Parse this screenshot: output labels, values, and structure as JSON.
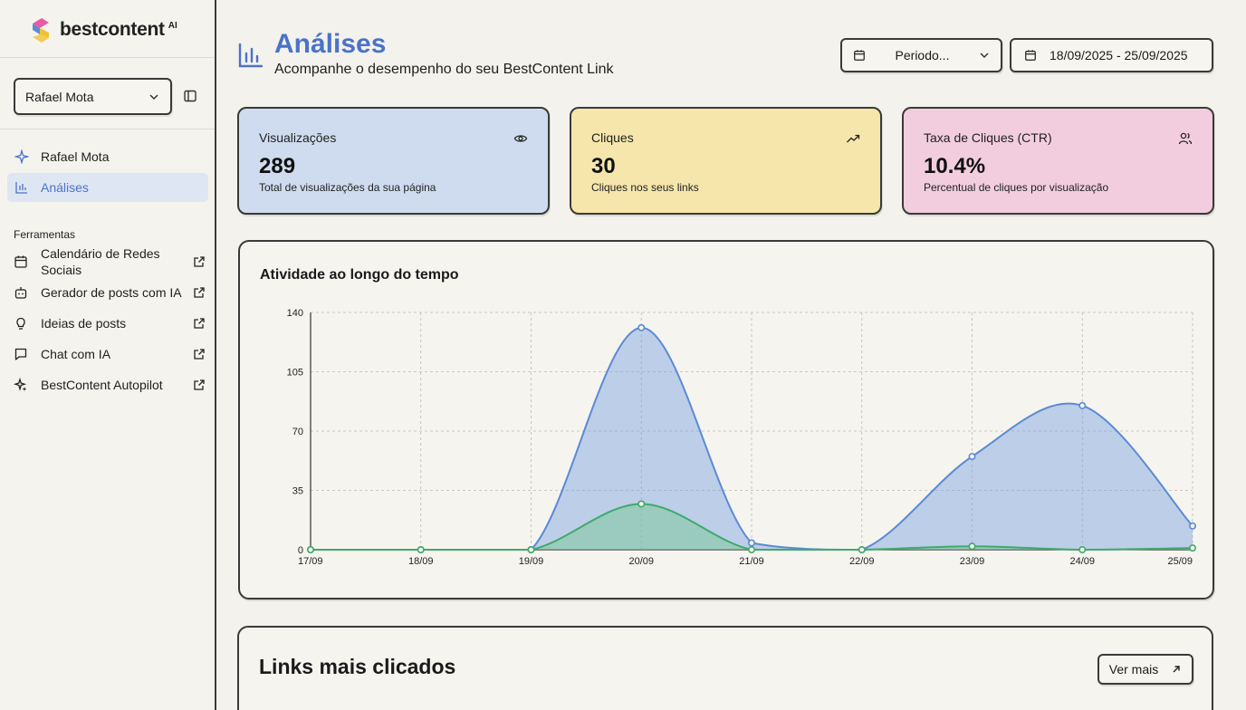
{
  "brand": {
    "name": "bestcontent",
    "suffix": "AI"
  },
  "sidebar": {
    "user_select": "Rafael Mota",
    "nav": [
      {
        "label": "Rafael Mota",
        "icon": "sparkle-icon"
      },
      {
        "label": "Análises",
        "icon": "bar-chart-icon",
        "active": true
      }
    ],
    "tools_label": "Ferramentas",
    "tools": [
      {
        "label": "Calendário de Redes Sociais",
        "icon": "calendar-icon"
      },
      {
        "label": "Gerador de posts com IA",
        "icon": "bot-icon"
      },
      {
        "label": "Ideias de posts",
        "icon": "lightbulb-icon"
      },
      {
        "label": "Chat com IA",
        "icon": "chat-icon"
      },
      {
        "label": "BestContent Autopilot",
        "icon": "autopilot-icon"
      }
    ]
  },
  "header": {
    "title": "Análises",
    "subtitle": "Acompanhe o desempenho do seu BestContent Link",
    "period_label": "Periodo...",
    "date_range": "18/09/2025 - 25/09/2025"
  },
  "stats": [
    {
      "title": "Visualizações",
      "value": "289",
      "desc": "Total de visualizações da sua página",
      "color": "#cfdcef",
      "icon": "eye-icon"
    },
    {
      "title": "Cliques",
      "value": "30",
      "desc": "Cliques nos seus links",
      "color": "#f6e6ab",
      "icon": "trend-up-icon"
    },
    {
      "title": "Taxa de Cliques (CTR)",
      "value": "10.4%",
      "desc": "Percentual de cliques por visualização",
      "color": "#f2cddd",
      "icon": "users-icon"
    }
  ],
  "activity": {
    "title": "Atividade ao longo do tempo"
  },
  "chart_data": {
    "type": "area",
    "categories": [
      "17/09",
      "18/09",
      "19/09",
      "20/09",
      "21/09",
      "22/09",
      "23/09",
      "24/09",
      "25/09"
    ],
    "series": [
      {
        "values": [
          0,
          0,
          0,
          131,
          4,
          0,
          55,
          85,
          14
        ],
        "color": "#5b8ad6"
      },
      {
        "values": [
          0,
          0,
          0,
          27,
          0,
          0,
          2,
          0,
          1
        ],
        "color": "#3faa6a"
      }
    ],
    "yticks": [
      "0",
      "35",
      "70",
      "105",
      "140"
    ],
    "ylim": [
      0,
      140
    ],
    "grid": true
  },
  "links": {
    "title": "Links mais clicados",
    "more_label": "Ver mais"
  }
}
